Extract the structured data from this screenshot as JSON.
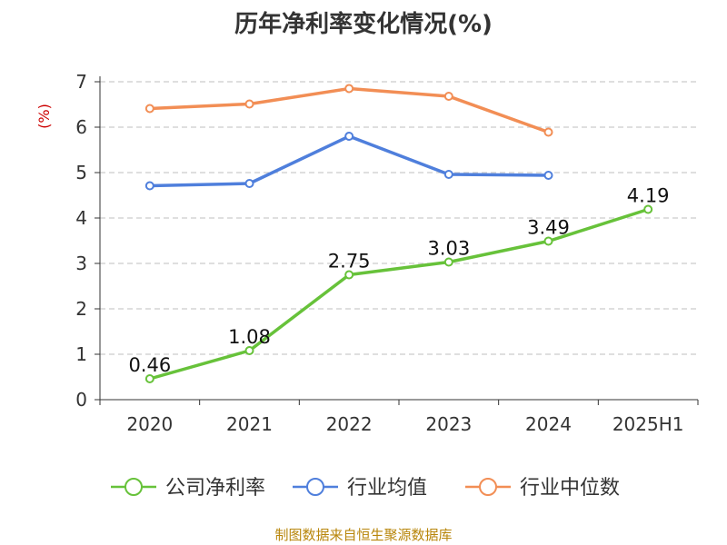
{
  "title": "历年净利率变化情况(%)",
  "footer": "制图数据来自恒生聚源数据库",
  "colors": {
    "company": "#67c23a",
    "industry_avg": "#4f7fdc",
    "industry_median": "#f28e55",
    "grid": "#cccccc",
    "axis": "#333333",
    "unit_label": "#cc0000"
  },
  "chart_data": {
    "type": "line",
    "title": "历年净利率变化情况(%)",
    "ylabel": "(%)",
    "xlabel": "",
    "categories": [
      "2020",
      "2021",
      "2022",
      "2023",
      "2024",
      "2025H1"
    ],
    "ylim": [
      0,
      7
    ],
    "yticks": [
      "0",
      "1",
      "2",
      "3",
      "4",
      "5",
      "6",
      "7"
    ],
    "grid": true,
    "legend_position": "bottom",
    "series": [
      {
        "name": "公司净利率",
        "color": "#67c23a",
        "values": [
          0.46,
          1.08,
          2.75,
          3.03,
          3.49,
          4.19
        ],
        "labels": [
          "0.46",
          "1.08",
          "2.75",
          "3.03",
          "3.49",
          "4.19"
        ]
      },
      {
        "name": "行业均值",
        "color": "#4f7fdc",
        "values": [
          4.71,
          4.76,
          5.8,
          4.96,
          4.94,
          null
        ]
      },
      {
        "name": "行业中位数",
        "color": "#f28e55",
        "values": [
          6.41,
          6.51,
          6.85,
          6.68,
          5.89,
          null
        ]
      }
    ]
  }
}
